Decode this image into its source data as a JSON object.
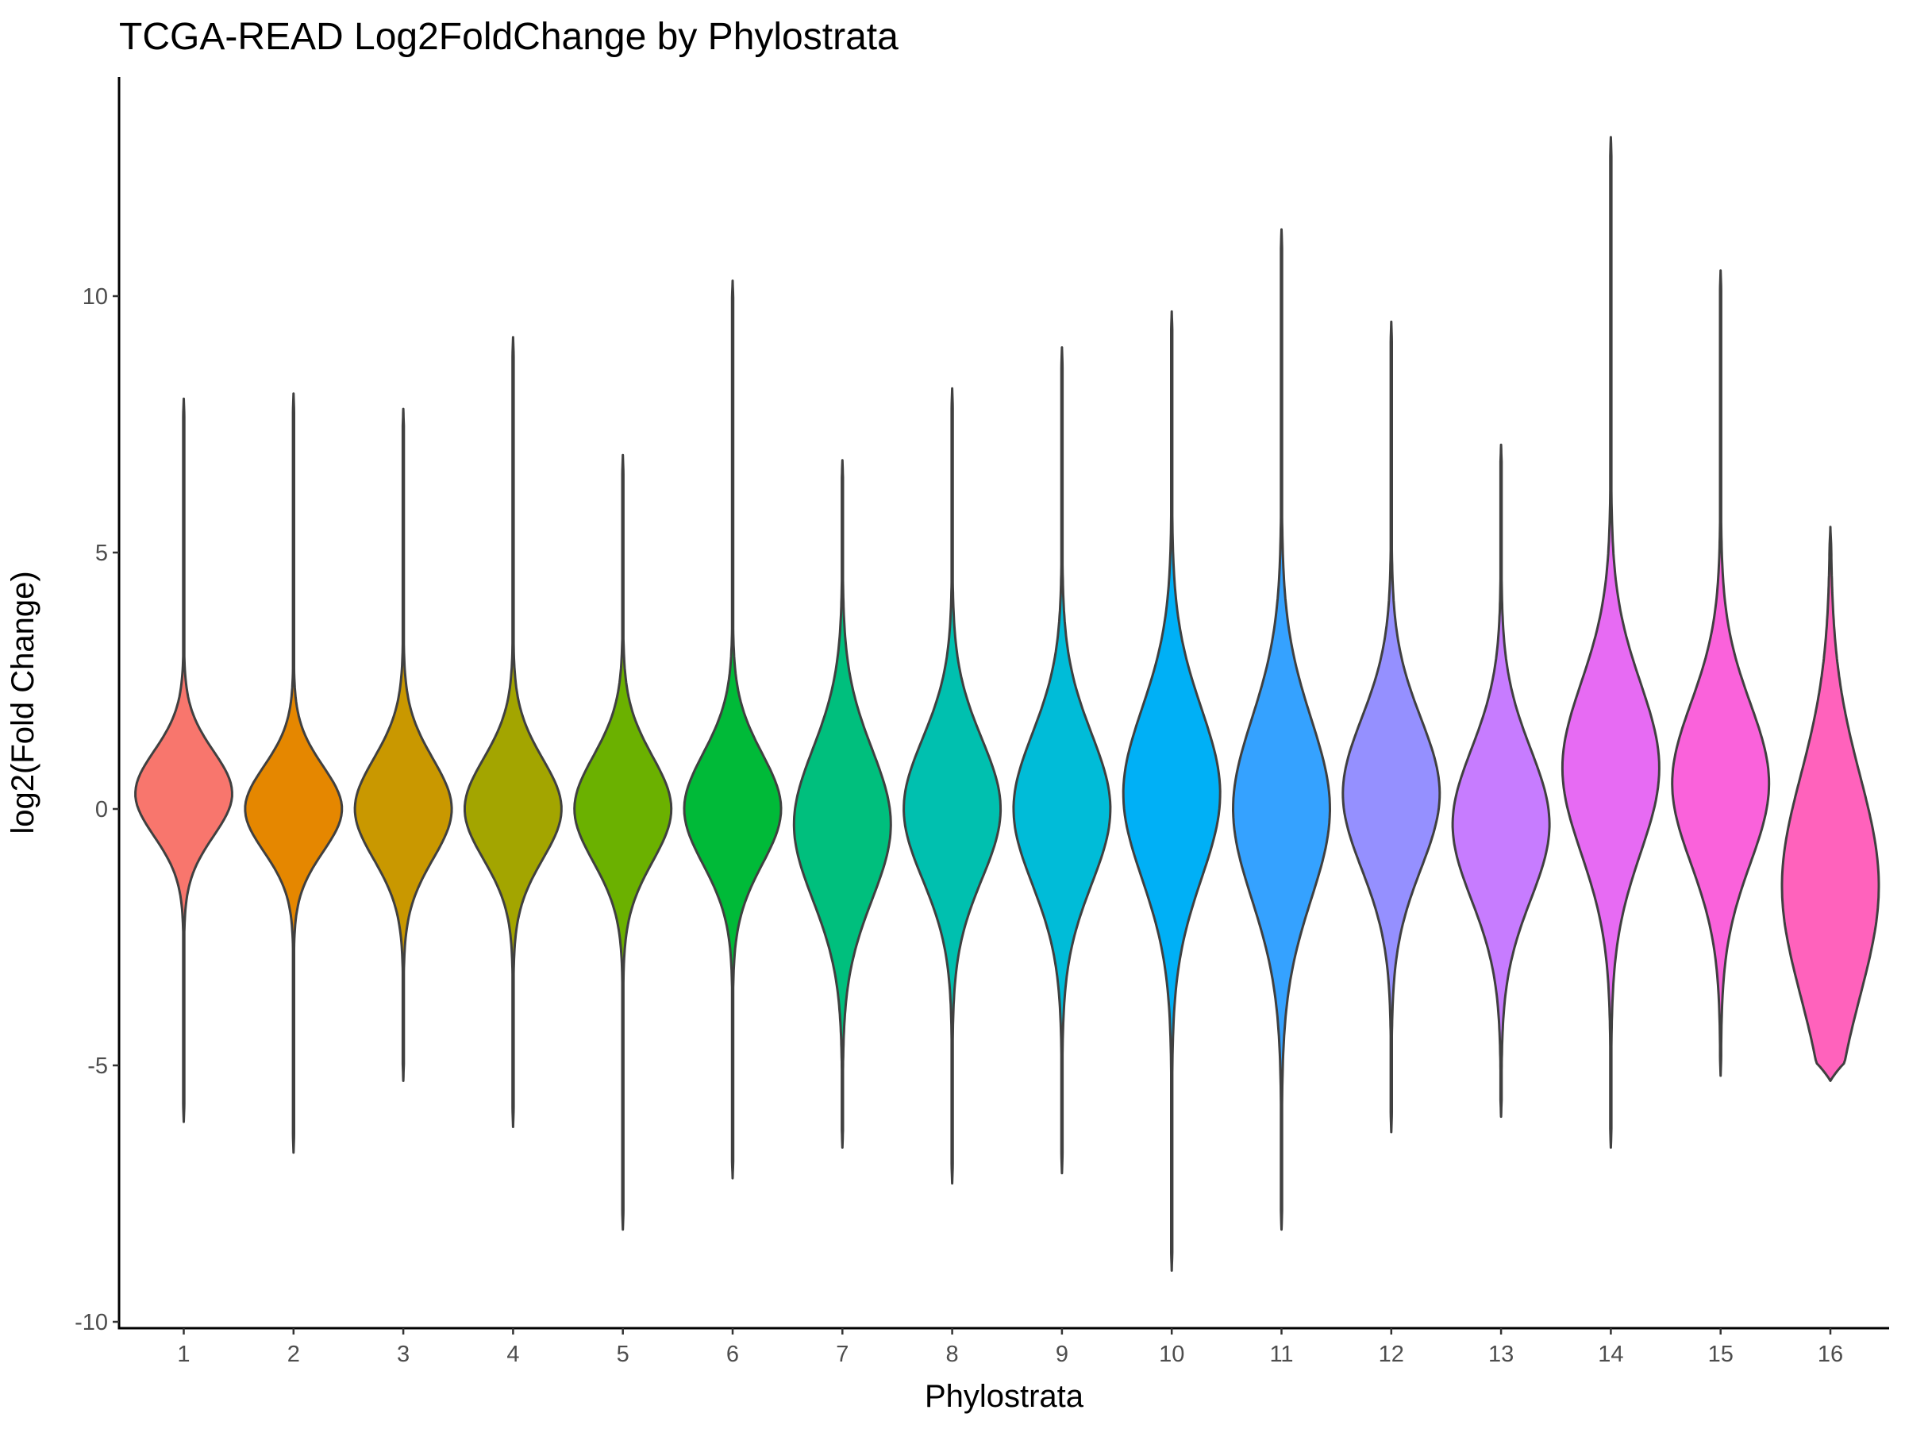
{
  "chart_data": {
    "type": "violin",
    "title": "TCGA-READ Log2FoldChange by Phylostrata",
    "xlabel": "Phylostrata",
    "ylabel": "log2(Fold Change)",
    "ylim": [
      -10.1,
      14.3
    ],
    "yticks": [
      10,
      5,
      0,
      -5,
      -10
    ],
    "ytick_labels": [
      "10",
      "5",
      "0",
      "-5",
      "-10"
    ],
    "grid": false,
    "legend": "none",
    "categories": [
      "1",
      "2",
      "3",
      "4",
      "5",
      "6",
      "7",
      "8",
      "9",
      "10",
      "11",
      "12",
      "13",
      "14",
      "15",
      "16"
    ],
    "series": [
      {
        "category": "1",
        "color": "#F8766D",
        "min": -6.1,
        "max": 8.0,
        "mode": 0.3,
        "spread": 0.85,
        "max_halfwidth": 0.45
      },
      {
        "category": "2",
        "color": "#E58700",
        "min": -6.7,
        "max": 8.1,
        "mode": 0.0,
        "spread": 0.85,
        "max_halfwidth": 0.45
      },
      {
        "category": "3",
        "color": "#C99800",
        "min": -5.3,
        "max": 7.8,
        "mode": 0.0,
        "spread": 1.0,
        "max_halfwidth": 0.45
      },
      {
        "category": "4",
        "color": "#A3A500",
        "min": -6.2,
        "max": 9.2,
        "mode": 0.0,
        "spread": 1.0,
        "max_halfwidth": 0.45
      },
      {
        "category": "5",
        "color": "#6BB100",
        "min": -8.2,
        "max": 6.9,
        "mode": 0.0,
        "spread": 1.05,
        "max_halfwidth": 0.45
      },
      {
        "category": "6",
        "color": "#00BA38",
        "min": -7.2,
        "max": 10.3,
        "mode": 0.0,
        "spread": 1.1,
        "max_halfwidth": 0.45
      },
      {
        "category": "7",
        "color": "#00BF7D",
        "min": -6.6,
        "max": 6.8,
        "mode": -0.3,
        "spread": 1.5,
        "max_halfwidth": 0.45
      },
      {
        "category": "8",
        "color": "#00C0AF",
        "min": -7.3,
        "max": 8.2,
        "mode": 0.0,
        "spread": 1.4,
        "max_halfwidth": 0.45
      },
      {
        "category": "9",
        "color": "#00BCD8",
        "min": -7.1,
        "max": 9.0,
        "mode": 0.0,
        "spread": 1.5,
        "max_halfwidth": 0.45
      },
      {
        "category": "10",
        "color": "#00B0F6",
        "min": -9.0,
        "max": 9.7,
        "mode": 0.3,
        "spread": 1.7,
        "max_halfwidth": 0.45
      },
      {
        "category": "11",
        "color": "#35A2FF",
        "min": -8.2,
        "max": 11.3,
        "mode": 0.0,
        "spread": 1.8,
        "max_halfwidth": 0.45
      },
      {
        "category": "12",
        "color": "#9590FF",
        "min": -6.3,
        "max": 9.5,
        "mode": 0.3,
        "spread": 1.5,
        "max_halfwidth": 0.45
      },
      {
        "category": "13",
        "color": "#C77CFF",
        "min": -6.0,
        "max": 7.1,
        "mode": -0.3,
        "spread": 1.5,
        "max_halfwidth": 0.45
      },
      {
        "category": "14",
        "color": "#E76BF3",
        "min": -6.6,
        "max": 13.1,
        "mode": 0.8,
        "spread": 1.7,
        "max_halfwidth": 0.45
      },
      {
        "category": "15",
        "color": "#FA62DB",
        "min": -5.2,
        "max": 10.5,
        "mode": 0.5,
        "spread": 1.6,
        "max_halfwidth": 0.45
      },
      {
        "category": "16",
        "color": "#FF62BC",
        "min": -5.3,
        "max": 5.5,
        "mode": -1.5,
        "spread": 2.2,
        "max_halfwidth": 0.45
      }
    ]
  }
}
